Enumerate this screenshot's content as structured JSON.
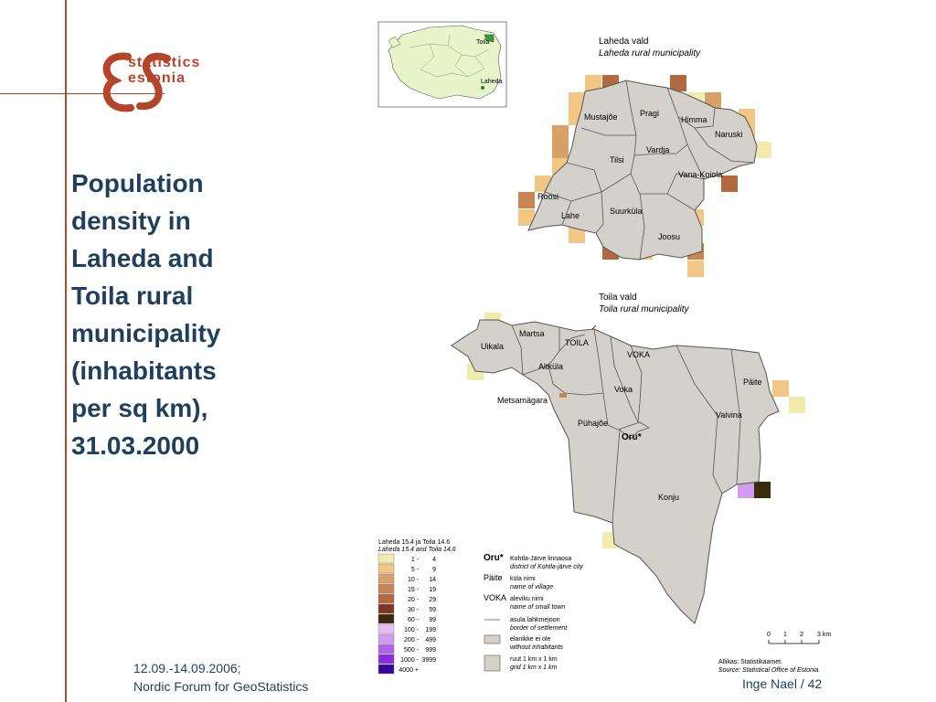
{
  "logo": {
    "line1": "statistics",
    "line2": "estonia",
    "mark": "ES"
  },
  "title": "Population\ndensity in\nLaheda and\nToila rural\nmunicipality\n(inhabitants\n per sq km),\n31.03.2000",
  "footer": {
    "left": "12.09.-14.09.2006;\nNordic Forum for GeoStatistics",
    "right": "Inge Nael / 42"
  },
  "inset_map": {
    "labels": [
      "Toila",
      "Laheda"
    ]
  },
  "laheda": {
    "title": "Laheda vald",
    "title_en": "Laheda rural municipality",
    "villages": [
      "Mustajõe",
      "Pragi",
      "Himma",
      "Naruski",
      "Vardja",
      "Tilsi",
      "Vana-Koiola",
      "Roosi",
      "Lahe",
      "Suurküla",
      "Joosu"
    ]
  },
  "toila": {
    "title": "Toila vald",
    "title_en": "Toila rural municipality",
    "villages": [
      "Martsa",
      "TOILA",
      "Uikala",
      "VOKA",
      "Altküla",
      "Metsamägara",
      "Voka",
      "Päite",
      "Vaivina",
      "Pühajõe",
      "Oru*",
      "Konju"
    ]
  },
  "legend": {
    "header": "Laheda 15.4 ja Toila 14.6",
    "header_en": "Laheda 15.4 and Toila 14.6",
    "classes": [
      {
        "from": "1 -",
        "to": "4",
        "color": "#f2ebae"
      },
      {
        "from": "5 -",
        "to": "9",
        "color": "#f2c784"
      },
      {
        "from": "10 -",
        "to": "14",
        "color": "#d9a067"
      },
      {
        "from": "15 -",
        "to": "19",
        "color": "#c98552"
      },
      {
        "from": "20 -",
        "to": "29",
        "color": "#b06a3e"
      },
      {
        "from": "30 -",
        "to": "59",
        "color": "#7f3424"
      },
      {
        "from": "60 -",
        "to": "99",
        "color": "#3b2a0e"
      },
      {
        "from": "100 -",
        "to": "199",
        "color": "#e8bff2"
      },
      {
        "from": "200 -",
        "to": "499",
        "color": "#d29bef"
      },
      {
        "from": "500 -",
        "to": "999",
        "color": "#b161ef"
      },
      {
        "from": "1000 -",
        "to": "3999",
        "color": "#8b2be0"
      },
      {
        "from": "4000 +",
        "to": "",
        "color": "#3a069e"
      }
    ],
    "symbols": [
      {
        "code": "Oru*",
        "text": "Kohtla-Järve linnaosa",
        "text_en": "district of Kohtla-järve city"
      },
      {
        "code": "Päite",
        "text": "küla nimi",
        "text_en": "name of village"
      },
      {
        "code": "VOKA",
        "text": "aleviku nimi",
        "text_en": "name of small town"
      },
      {
        "code": "",
        "text": "asula lahkmejoon",
        "text_en": "border of settlement"
      },
      {
        "code": "",
        "text": "elanikke ei ole",
        "text_en": "without inhabitants"
      },
      {
        "code": "",
        "text": "ruut 1 km x 1 km",
        "text_en": "grid 1 km x 1 km"
      }
    ]
  },
  "scale": {
    "ticks": [
      "0",
      "1",
      "2",
      "3 km"
    ]
  },
  "source": {
    "et": "Allikas: Statistikaamet.",
    "en": "Source: Statistical Office of Estonia."
  },
  "colors": {
    "accent": "#b4452b",
    "title": "#1f3f5c",
    "municipality": "#d4d1cb",
    "inset": "#e8f5c8"
  }
}
